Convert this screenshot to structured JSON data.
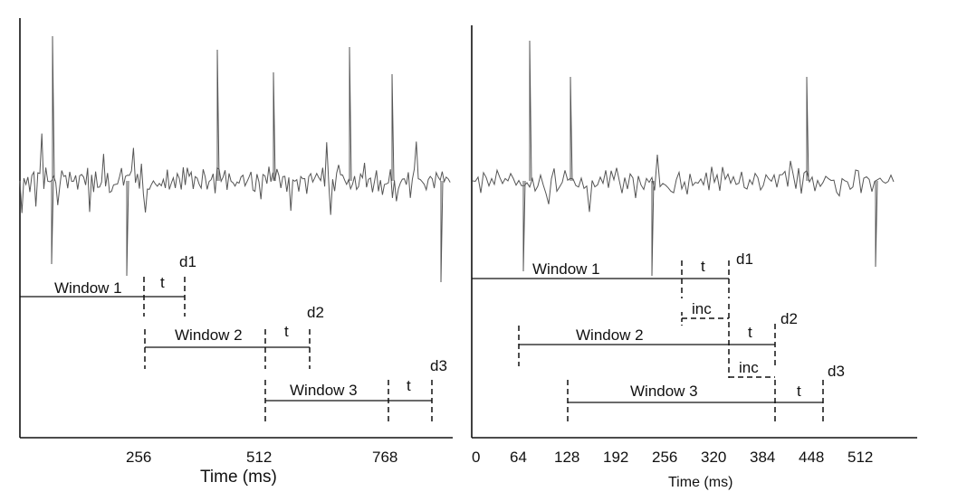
{
  "left_panel": {
    "ticks": [
      "256",
      "512",
      "768"
    ],
    "xlabel": "Time (ms)",
    "windows": [
      {
        "label": "Window 1",
        "t_label": "t",
        "d_label": "d1"
      },
      {
        "label": "Window 2",
        "t_label": "t",
        "d_label": "d2"
      },
      {
        "label": "Window 3",
        "t_label": "t",
        "d_label": "d3"
      }
    ]
  },
  "right_panel": {
    "ticks": [
      "0",
      "64",
      "128",
      "192",
      "256",
      "320",
      "384",
      "448",
      "512"
    ],
    "xlabel": "Time (ms)",
    "windows": [
      {
        "label": "Window 1",
        "t_label": "t",
        "d_label": "d1"
      },
      {
        "label": "Window 2",
        "t_label": "t",
        "d_label": "d2"
      },
      {
        "label": "Window 3",
        "t_label": "t",
        "d_label": "d3"
      }
    ],
    "inc_labels": [
      "inc",
      "inc"
    ]
  },
  "colors": {
    "signal": "#555555",
    "lines": "#111111"
  }
}
